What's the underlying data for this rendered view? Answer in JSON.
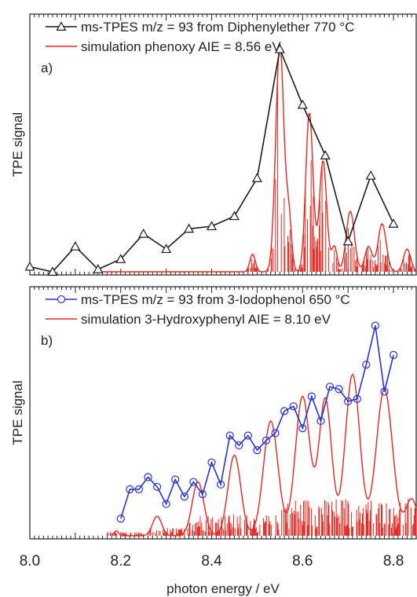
{
  "chart_data": [
    {
      "panel": "a)",
      "type": "line",
      "ylabel": "TPE signal",
      "xlim": [
        8.0,
        8.85
      ],
      "ylim": [
        0,
        1.0
      ],
      "series": [
        {
          "name": "ms-TPES m/z = 93 from Diphenylether 770 °C",
          "color": "#1a1a1a",
          "marker": "triangle",
          "x": [
            8.0,
            8.05,
            8.1,
            8.15,
            8.2,
            8.25,
            8.3,
            8.35,
            8.4,
            8.45,
            8.5,
            8.55,
            8.6,
            8.65,
            8.7,
            8.75,
            8.8
          ],
          "values": [
            0.02,
            0.0,
            0.1,
            0.01,
            0.05,
            0.15,
            0.09,
            0.17,
            0.18,
            0.22,
            0.37,
            0.88,
            0.66,
            0.46,
            0.12,
            0.38,
            0.19
          ]
        },
        {
          "name": "simulation phenoxy AIE = 8.56 eV",
          "color": "#e8261e",
          "peaks": [
            {
              "x": 8.49,
              "h": 0.07,
              "w": 0.006
            },
            {
              "x": 8.55,
              "h": 0.9,
              "w": 0.009
            },
            {
              "x": 8.57,
              "h": 0.2,
              "w": 0.006
            },
            {
              "x": 8.615,
              "h": 0.63,
              "w": 0.008
            },
            {
              "x": 8.645,
              "h": 0.44,
              "w": 0.008
            },
            {
              "x": 8.67,
              "h": 0.1,
              "w": 0.006
            },
            {
              "x": 8.705,
              "h": 0.24,
              "w": 0.009
            },
            {
              "x": 8.745,
              "h": 0.1,
              "w": 0.008
            },
            {
              "x": 8.775,
              "h": 0.19,
              "w": 0.009
            },
            {
              "x": 8.83,
              "h": 0.09,
              "w": 0.008
            }
          ]
        }
      ],
      "legend": "top"
    },
    {
      "panel": "b)",
      "type": "line",
      "ylabel": "TPE signal",
      "xlabel": "photon energy / eV",
      "xlim": [
        8.0,
        8.85
      ],
      "xticks": [
        8.0,
        8.2,
        8.4,
        8.6,
        8.8
      ],
      "ylim": [
        0,
        1.0
      ],
      "series": [
        {
          "name": "ms-TPES m/z = 93 from 3-Iodophenol 650 °C",
          "color": "#2632d4",
          "marker": "circle",
          "x": [
            8.2,
            8.22,
            8.24,
            8.26,
            8.28,
            8.3,
            8.32,
            8.34,
            8.36,
            8.38,
            8.4,
            8.42,
            8.44,
            8.46,
            8.48,
            8.5,
            8.52,
            8.54,
            8.56,
            8.58,
            8.6,
            8.62,
            8.64,
            8.66,
            8.68,
            8.7,
            8.72,
            8.74,
            8.76,
            8.78,
            8.8
          ],
          "values": [
            0.07,
            0.19,
            0.19,
            0.24,
            0.2,
            0.13,
            0.23,
            0.16,
            0.22,
            0.17,
            0.3,
            0.21,
            0.41,
            0.37,
            0.41,
            0.35,
            0.39,
            0.42,
            0.51,
            0.53,
            0.44,
            0.57,
            0.47,
            0.61,
            0.6,
            0.55,
            0.56,
            0.7,
            0.86,
            0.59,
            0.74
          ]
        },
        {
          "name": "simulation 3-Hydroxyphenyl AIE = 8.10 eV",
          "color": "#e8261e",
          "peaks": [
            {
              "x": 8.19,
              "h": 0.02,
              "w": 0.005
            },
            {
              "x": 8.28,
              "h": 0.08,
              "w": 0.01
            },
            {
              "x": 8.37,
              "h": 0.22,
              "w": 0.013
            },
            {
              "x": 8.45,
              "h": 0.33,
              "w": 0.014
            },
            {
              "x": 8.53,
              "h": 0.47,
              "w": 0.016
            },
            {
              "x": 8.6,
              "h": 0.57,
              "w": 0.016
            },
            {
              "x": 8.65,
              "h": 0.56,
              "w": 0.014
            },
            {
              "x": 8.71,
              "h": 0.66,
              "w": 0.016
            },
            {
              "x": 8.78,
              "h": 0.6,
              "w": 0.018
            },
            {
              "x": 8.84,
              "h": 0.15,
              "w": 0.013
            }
          ]
        }
      ],
      "legend": "top"
    }
  ],
  "panels": [
    {
      "label": "a)",
      "legend": [
        {
          "text": "ms-TPES m/z = 93 from Diphenylether 770 °C",
          "color": "#1a1a1a",
          "marker": "triangle"
        },
        {
          "text": "simulation phenoxy AIE = 8.56 eV",
          "color": "#e8261e",
          "marker": "none"
        }
      ]
    },
    {
      "label": "b)",
      "legend": [
        {
          "text": "ms-TPES m/z = 93 from 3-Iodophenol 650 °C",
          "color": "#2632d4",
          "marker": "circle"
        },
        {
          "text": "simulation 3-Hydroxyphenyl AIE = 8.10 eV",
          "color": "#e8261e",
          "marker": "none"
        }
      ]
    }
  ],
  "axes": {
    "ylabel": "TPE signal",
    "xlabel": "photon energy / eV",
    "xtick_labels": [
      "8.0",
      "8.2",
      "8.4",
      "8.6",
      "8.8"
    ]
  }
}
